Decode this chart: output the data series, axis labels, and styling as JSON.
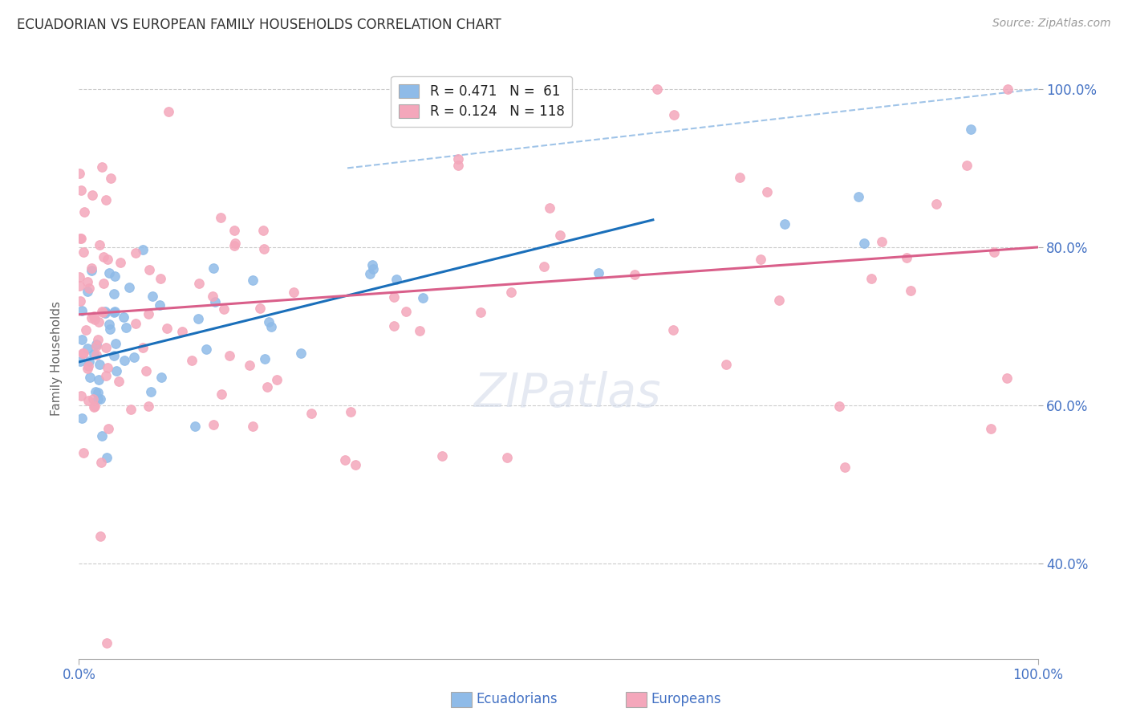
{
  "title": "ECUADORIAN VS EUROPEAN FAMILY HOUSEHOLDS CORRELATION CHART",
  "source": "Source: ZipAtlas.com",
  "ylabel": "Family Households",
  "xlim": [
    0.0,
    1.0
  ],
  "ylim": [
    0.28,
    1.04
  ],
  "yticks": [
    0.4,
    0.6,
    0.8,
    1.0
  ],
  "ytick_labels": [
    "40.0%",
    "60.0%",
    "80.0%",
    "100.0%"
  ],
  "xticks": [
    0.0,
    1.0
  ],
  "xtick_labels": [
    "0.0%",
    "100.0%"
  ],
  "legend_line1": "R = 0.471   N =  61",
  "legend_line2": "R = 0.124   N = 118",
  "color_blue": "#8fbbe8",
  "color_pink": "#f4a7bb",
  "color_blue_line": "#1a6fba",
  "color_pink_line": "#d95f8a",
  "color_dashed": "#a0c4e8",
  "color_axis_labels": "#4472c4",
  "color_legend_text": "#222222",
  "color_source": "#999999",
  "color_grid": "#cccccc",
  "background": "#ffffff"
}
